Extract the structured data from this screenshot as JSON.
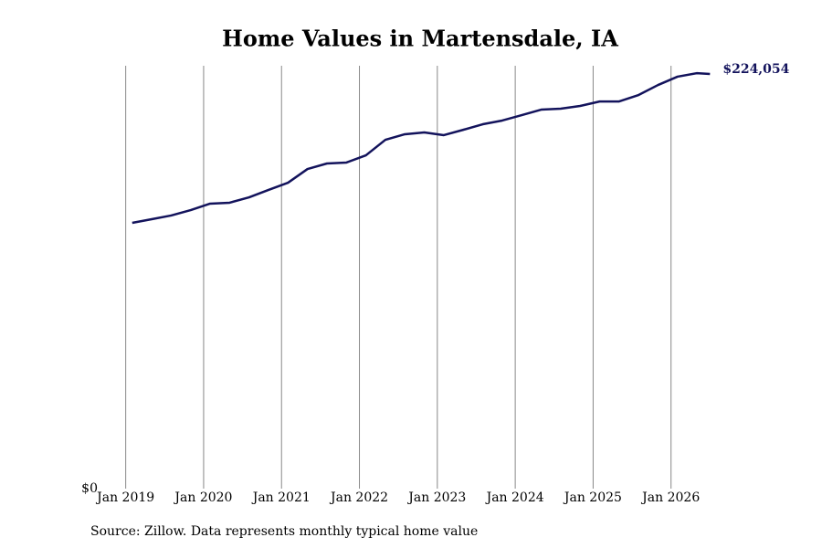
{
  "chart_data": {
    "type": "line",
    "title": "Home Values in Martensdale, IA",
    "source": "Source: Zillow. Data represents monthly typical home value",
    "x": [
      "2019-02",
      "2019-05",
      "2019-08",
      "2019-11",
      "2020-02",
      "2020-05",
      "2020-08",
      "2020-11",
      "2021-02",
      "2021-05",
      "2021-08",
      "2021-11",
      "2022-02",
      "2022-05",
      "2022-08",
      "2022-11",
      "2023-02",
      "2023-05",
      "2023-08",
      "2023-11",
      "2024-02",
      "2024-05",
      "2024-08",
      "2024-11",
      "2025-02",
      "2025-05",
      "2025-08",
      "2025-11",
      "2026-02",
      "2026-05",
      "2026-07"
    ],
    "series": [
      {
        "name": "Home Value",
        "color": "#13135c",
        "values": [
          143600,
          145600,
          147600,
          150500,
          154000,
          154500,
          157400,
          161400,
          165300,
          172700,
          175700,
          176200,
          180100,
          188500,
          191500,
          192500,
          191000,
          193900,
          196900,
          198900,
          201800,
          204800,
          205300,
          206800,
          209200,
          209200,
          212700,
          218100,
          222600,
          224500,
          224054
        ],
        "value_labels": [
          null,
          null,
          null,
          null,
          null,
          null,
          null,
          null,
          null,
          null,
          null,
          null,
          null,
          null,
          null,
          null,
          null,
          null,
          null,
          null,
          null,
          null,
          null,
          null,
          null,
          null,
          null,
          null,
          null,
          null,
          "$224,054"
        ]
      }
    ],
    "xlim": [
      "2018-07",
      "2027-01"
    ],
    "xticks": [
      {
        "value": "2019-01",
        "label": "Jan 2019"
      },
      {
        "value": "2020-01",
        "label": "Jan 2020"
      },
      {
        "value": "2021-01",
        "label": "Jan 2021"
      },
      {
        "value": "2022-01",
        "label": "Jan 2022"
      },
      {
        "value": "2023-01",
        "label": "Jan 2023"
      },
      {
        "value": "2024-01",
        "label": "Jan 2024"
      },
      {
        "value": "2025-01",
        "label": "Jan 2025"
      },
      {
        "value": "2026-01",
        "label": "Jan 2026"
      }
    ],
    "ylim": [
      0,
      228500
    ],
    "yticks": [
      {
        "value": 0,
        "label": "$0"
      }
    ],
    "grid": "x"
  }
}
